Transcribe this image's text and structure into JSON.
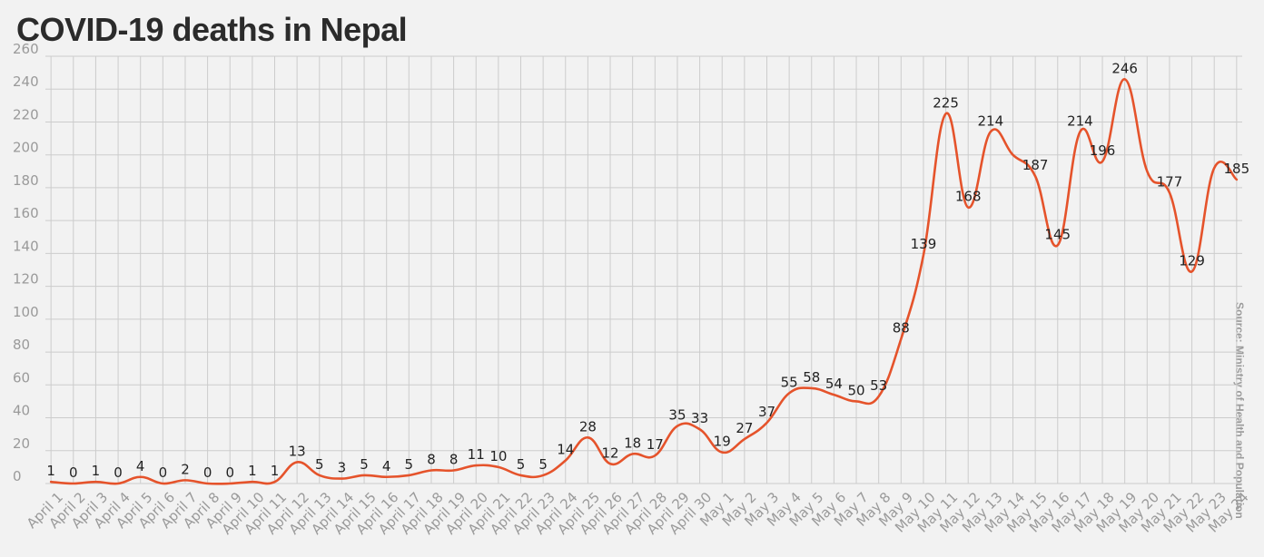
{
  "title": "COVID-19 deaths in Nepal",
  "source": "Source: Ministry of Health and Population",
  "colors": {
    "line": "#e5532b",
    "grid": "#cccccc",
    "tick": "#9a9a9a",
    "label": "#222222"
  },
  "chart_data": {
    "type": "line",
    "title": "COVID-19 deaths in Nepal",
    "xlabel": "",
    "ylabel": "",
    "ylim": [
      0,
      260
    ],
    "yticks": [
      0,
      20,
      40,
      60,
      80,
      100,
      120,
      140,
      160,
      180,
      200,
      220,
      240,
      260
    ],
    "grid": true,
    "categories": [
      "April 1",
      "April 2",
      "April 3",
      "April 4",
      "April 5",
      "April 6",
      "April 7",
      "April 8",
      "April 9",
      "April 10",
      "April 11",
      "April 12",
      "April 13",
      "April 14",
      "April 15",
      "April 16",
      "April 17",
      "April 18",
      "April 19",
      "April 20",
      "April 21",
      "April 22",
      "April 23",
      "April 24",
      "April 25",
      "April 26",
      "April 27",
      "April 28",
      "April 29",
      "April 30",
      "May 1",
      "May 2",
      "May 3",
      "May 4",
      "May 5",
      "May 6",
      "May 7",
      "May 8",
      "May 9",
      "May 10",
      "May 11",
      "May 12",
      "May 13",
      "May 14",
      "May 15",
      "May 16",
      "May 17",
      "May 18",
      "May 19",
      "May 20",
      "May 21",
      "May 22",
      "May 23",
      "May 24"
    ],
    "series": [
      {
        "values": [
          1,
          0,
          1,
          0,
          4,
          0,
          2,
          0,
          0,
          1,
          1,
          13,
          5,
          3,
          5,
          4,
          5,
          8,
          8,
          11,
          10,
          5,
          5,
          14,
          28,
          12,
          18,
          17,
          35,
          33,
          19,
          27,
          37,
          55,
          58,
          54,
          50,
          53,
          88,
          139,
          225,
          168,
          214,
          200,
          187,
          145,
          214,
          196,
          246,
          190,
          177,
          129,
          192,
          185
        ],
        "labels": [
          "1",
          "0",
          "1",
          "0",
          "4",
          "0",
          "2",
          "0",
          "0",
          "1",
          "1",
          "13",
          "5",
          "3",
          "5",
          "4",
          "5",
          "8",
          "8",
          "11",
          "10",
          "5",
          "5",
          "14",
          "28",
          "12",
          "18",
          "17",
          "35",
          "33",
          "19",
          "27",
          "37",
          "55",
          "58",
          "54",
          "50",
          "53",
          "88",
          "139",
          "225",
          "168",
          "214",
          "",
          "187",
          "145",
          "214",
          "196",
          "246",
          "",
          "177",
          "129",
          "",
          "185"
        ]
      }
    ]
  }
}
